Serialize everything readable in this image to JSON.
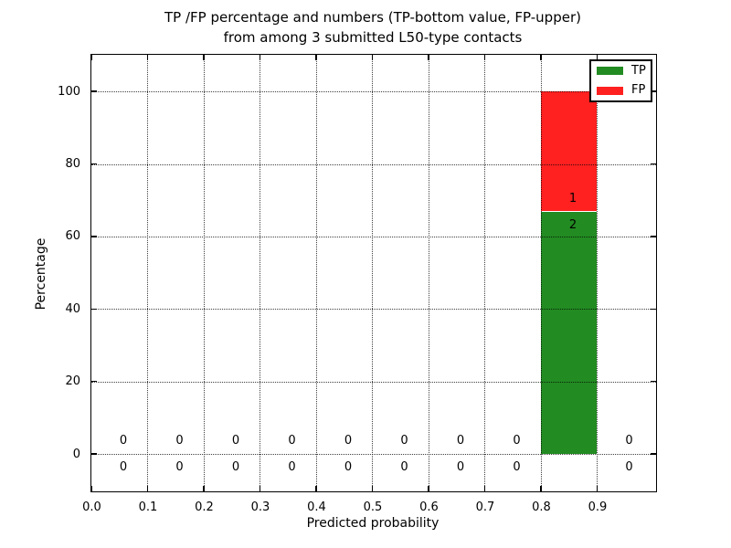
{
  "title": {
    "line1": "TP /FP percentage and numbers (TP-bottom value, FP-upper)",
    "line2": "from among 3 submitted L50-type contacts"
  },
  "colors": {
    "tp": "#228B22",
    "fp": "#FF2020",
    "frame": "#000000",
    "grid": "#000000",
    "background": "#FFFFFF",
    "text": "#000000"
  },
  "chart_data": {
    "type": "bar",
    "stacked": true,
    "title": "TP /FP percentage and numbers (TP-bottom value, FP-upper) from among 3 submitted L50-type contacts",
    "xlabel": "Predicted probability",
    "ylabel": "Percentage",
    "xlim": [
      0,
      1.005
    ],
    "ylim": [
      -10.3,
      110.1
    ],
    "xtick_labels": [
      "0.0",
      "0.1",
      "0.2",
      "0.3",
      "0.4",
      "0.5",
      "0.6",
      "0.7",
      "0.8",
      "0.9"
    ],
    "xtick_values": [
      0,
      0.1,
      0.2,
      0.3,
      0.4,
      0.5,
      0.6,
      0.7,
      0.8,
      0.9
    ],
    "ytick_labels": [
      "0",
      "20",
      "40",
      "60",
      "80",
      "100"
    ],
    "ytick_values": [
      0,
      20,
      40,
      60,
      80,
      100
    ],
    "grid": {
      "visible": true,
      "linestyle": "dotted",
      "drawn_above_bars": true
    },
    "legend": {
      "position": "upper right",
      "entries": [
        {
          "label": "TP",
          "color_key": "tp"
        },
        {
          "label": "FP",
          "color_key": "fp"
        }
      ]
    },
    "total_submitted": 3,
    "bin_width": 0.1,
    "bins": [
      {
        "range": [
          0.0,
          0.1
        ],
        "center": 0.05,
        "tp_count": 0,
        "fp_count": 0,
        "tp_pct": 0,
        "fp_pct": 0
      },
      {
        "range": [
          0.1,
          0.2
        ],
        "center": 0.15,
        "tp_count": 0,
        "fp_count": 0,
        "tp_pct": 0,
        "fp_pct": 0
      },
      {
        "range": [
          0.2,
          0.3
        ],
        "center": 0.25,
        "tp_count": 0,
        "fp_count": 0,
        "tp_pct": 0,
        "fp_pct": 0
      },
      {
        "range": [
          0.3,
          0.4
        ],
        "center": 0.35,
        "tp_count": 0,
        "fp_count": 0,
        "tp_pct": 0,
        "fp_pct": 0
      },
      {
        "range": [
          0.4,
          0.5
        ],
        "center": 0.45,
        "tp_count": 0,
        "fp_count": 0,
        "tp_pct": 0,
        "fp_pct": 0
      },
      {
        "range": [
          0.5,
          0.6
        ],
        "center": 0.55,
        "tp_count": 0,
        "fp_count": 0,
        "tp_pct": 0,
        "fp_pct": 0
      },
      {
        "range": [
          0.6,
          0.7
        ],
        "center": 0.65,
        "tp_count": 0,
        "fp_count": 0,
        "tp_pct": 0,
        "fp_pct": 0
      },
      {
        "range": [
          0.7,
          0.8
        ],
        "center": 0.75,
        "tp_count": 0,
        "fp_count": 0,
        "tp_pct": 0,
        "fp_pct": 0
      },
      {
        "range": [
          0.8,
          0.9
        ],
        "center": 0.85,
        "tp_count": 2,
        "fp_count": 1,
        "tp_pct": 66.7,
        "fp_pct": 33.3
      },
      {
        "range": [
          0.9,
          1.0
        ],
        "center": 0.95,
        "tp_count": 0,
        "fp_count": 0,
        "tp_pct": 0,
        "fp_pct": 0
      }
    ]
  }
}
